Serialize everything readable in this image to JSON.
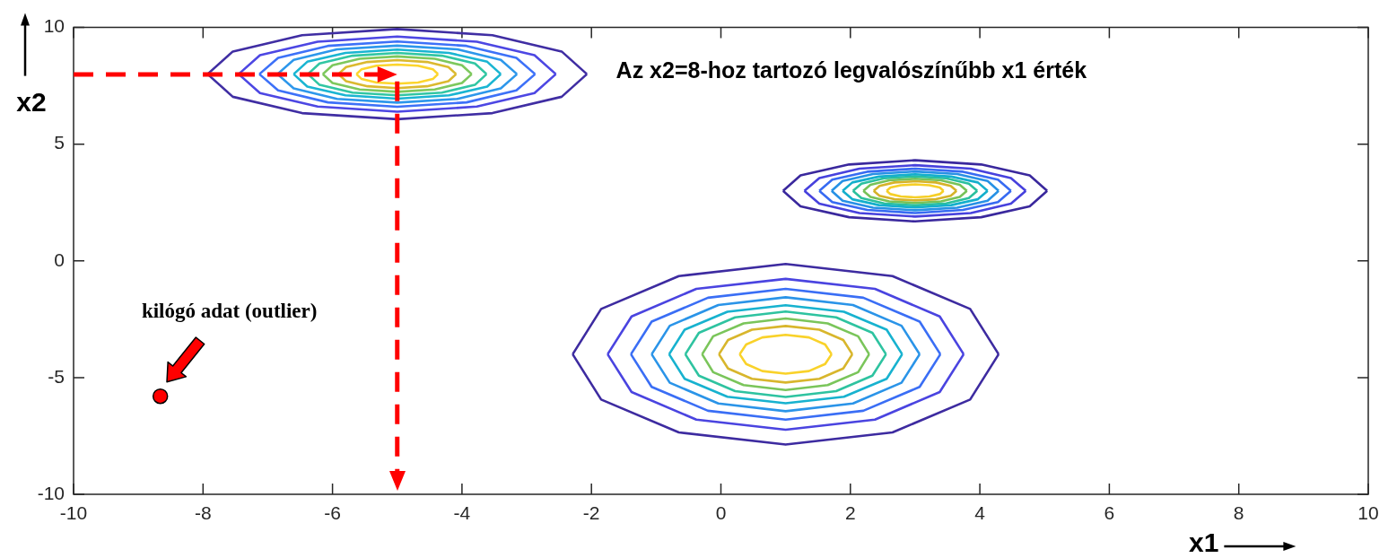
{
  "chart_data": {
    "type": "line",
    "xlabel": "x1",
    "ylabel": "x2",
    "xlim": [
      -10,
      10
    ],
    "ylim": [
      -10,
      10
    ],
    "xticks": [
      -10,
      -8,
      -6,
      -4,
      -2,
      0,
      2,
      4,
      6,
      8,
      10
    ],
    "yticks": [
      -10,
      -5,
      0,
      5,
      10
    ],
    "marker": "none",
    "ref_lines": [
      {
        "axis": "x",
        "value": -5,
        "color": "#ff0000",
        "line_style": "dashed"
      }
    ],
    "annotations": [
      "Az x2=8-hoz tartozó legvalószínűbb x1 érték",
      "kilógó adat (outlier)"
    ],
    "series": [
      {
        "color": "#3d2ba0",
        "x": [
          -2.29,
          -1.85,
          -0.65,
          1,
          2.65,
          3.85,
          4.29
        ],
        "values": [
          -4,
          -2.06,
          -0.65,
          -0.13,
          -0.65,
          -2.06,
          -4
        ]
      },
      {
        "color": "#3d2ba0",
        "x": [
          -2.29,
          -1.85,
          -0.65,
          1,
          2.65,
          3.85,
          4.29
        ],
        "values": [
          -4,
          -5.94,
          -7.35,
          -7.87,
          -7.35,
          -5.94,
          -4
        ]
      },
      {
        "color": "#4a44e0",
        "x": [
          -1.75,
          -1.38,
          -0.38,
          1,
          2.38,
          3.38,
          3.75
        ],
        "values": [
          -4,
          -2.38,
          -1.2,
          -0.77,
          -1.2,
          -2.38,
          -4
        ]
      },
      {
        "color": "#4a44e0",
        "x": [
          -1.75,
          -1.38,
          -0.38,
          1,
          2.38,
          3.38,
          3.75
        ],
        "values": [
          -4,
          -5.62,
          -6.8,
          -7.23,
          -6.8,
          -5.62,
          -4
        ]
      },
      {
        "color": "#3a6ef5",
        "x": [
          -1.39,
          -1.07,
          -0.2,
          1,
          2.2,
          3.07,
          3.39
        ],
        "values": [
          -4,
          -2.6,
          -1.58,
          -1.2,
          -1.58,
          -2.6,
          -4
        ]
      },
      {
        "color": "#3a6ef5",
        "x": [
          -1.39,
          -1.07,
          -0.2,
          1,
          2.2,
          3.07,
          3.39
        ],
        "values": [
          -4,
          -5.4,
          -6.42,
          -6.8,
          -6.42,
          -5.4,
          -4
        ]
      },
      {
        "color": "#2a94e8",
        "x": [
          -1.07,
          -0.79,
          -0.04,
          1,
          2.04,
          2.79,
          3.07
        ],
        "values": [
          -4,
          -2.78,
          -1.89,
          -1.56,
          -1.89,
          -2.78,
          -4
        ]
      },
      {
        "color": "#2a94e8",
        "x": [
          -1.07,
          -0.79,
          -0.04,
          1,
          2.04,
          2.79,
          3.07
        ],
        "values": [
          -4,
          -5.22,
          -6.11,
          -6.44,
          -6.11,
          -5.22,
          -4
        ]
      },
      {
        "color": "#17b2cf",
        "x": [
          -0.8,
          -0.56,
          0.1,
          1,
          1.9,
          2.56,
          2.8
        ],
        "values": [
          -4,
          -2.95,
          -2.18,
          -1.9,
          -2.18,
          -2.95,
          -4
        ]
      },
      {
        "color": "#17b2cf",
        "x": [
          -0.8,
          -0.56,
          0.1,
          1,
          1.9,
          2.56,
          2.8
        ],
        "values": [
          -4,
          -5.05,
          -5.82,
          -6.1,
          -5.82,
          -5.05,
          -4
        ]
      },
      {
        "color": "#2ec3a0",
        "x": [
          -0.55,
          -0.34,
          0.22,
          1,
          1.78,
          2.34,
          2.55
        ],
        "values": [
          -4,
          -3.08,
          -2.42,
          -2.17,
          -2.42,
          -3.08,
          -4
        ]
      },
      {
        "color": "#2ec3a0",
        "x": [
          -0.55,
          -0.34,
          0.22,
          1,
          1.78,
          2.34,
          2.55
        ],
        "values": [
          -4,
          -4.92,
          -5.58,
          -5.83,
          -5.58,
          -4.92,
          -4
        ]
      },
      {
        "color": "#7ac55a",
        "x": [
          -0.29,
          -0.12,
          0.35,
          1,
          1.65,
          2.12,
          2.29
        ],
        "values": [
          -4,
          -3.23,
          -2.68,
          -2.47,
          -2.68,
          -3.23,
          -4
        ]
      },
      {
        "color": "#7ac55a",
        "x": [
          -0.29,
          -0.12,
          0.35,
          1,
          1.65,
          2.12,
          2.29
        ],
        "values": [
          -4,
          -4.77,
          -5.32,
          -5.53,
          -5.32,
          -4.77,
          -4
        ]
      },
      {
        "color": "#d8b62c",
        "x": [
          -0.03,
          0.11,
          0.48,
          1,
          1.52,
          1.89,
          2.03
        ],
        "values": [
          -4,
          -3.39,
          -2.95,
          -2.79,
          -2.95,
          -3.39,
          -4
        ]
      },
      {
        "color": "#d8b62c",
        "x": [
          -0.03,
          0.11,
          0.48,
          1,
          1.52,
          1.89,
          2.03
        ],
        "values": [
          -4,
          -4.61,
          -5.05,
          -5.21,
          -5.05,
          -4.61,
          -4
        ]
      },
      {
        "color": "#f9d22a",
        "x": [
          0.29,
          0.39,
          0.64,
          1,
          1.36,
          1.61,
          1.71
        ],
        "values": [
          -4,
          -3.58,
          -3.28,
          -3.17,
          -3.28,
          -3.58,
          -4
        ]
      },
      {
        "color": "#f9d22a",
        "x": [
          0.29,
          0.39,
          0.64,
          1,
          1.36,
          1.61,
          1.71
        ],
        "values": [
          -4,
          -4.42,
          -4.72,
          -4.83,
          -4.72,
          -4.42,
          -4
        ]
      },
      {
        "color": "#402ea3",
        "x": [
          -7.93,
          -7.54,
          -6.47,
          -5,
          -3.53,
          -2.46,
          -2.07
        ],
        "values": [
          8,
          8.97,
          9.67,
          9.93,
          9.67,
          8.97,
          8
        ]
      },
      {
        "color": "#402ea3",
        "x": [
          -7.93,
          -7.54,
          -6.47,
          -5,
          -3.53,
          -2.46,
          -2.07
        ],
        "values": [
          8,
          7.03,
          6.33,
          6.07,
          6.33,
          7.03,
          8
        ]
      },
      {
        "color": "#4d47e3",
        "x": [
          -7.45,
          -7.12,
          -6.23,
          -5,
          -3.77,
          -2.88,
          -2.55
        ],
        "values": [
          8,
          8.81,
          9.39,
          9.61,
          9.39,
          8.81,
          8
        ]
      },
      {
        "color": "#4d47e3",
        "x": [
          -7.45,
          -7.12,
          -6.23,
          -5,
          -3.77,
          -2.88,
          -2.55
        ],
        "values": [
          8,
          7.19,
          6.61,
          6.39,
          6.61,
          7.19,
          8
        ]
      },
      {
        "color": "#3d71f8",
        "x": [
          -7.13,
          -6.84,
          -6.07,
          -5,
          -3.93,
          -3.16,
          -2.87
        ],
        "values": [
          8,
          8.7,
          9.21,
          9.4,
          9.21,
          8.7,
          8
        ]
      },
      {
        "color": "#3d71f8",
        "x": [
          -7.13,
          -6.84,
          -6.07,
          -5,
          -3.93,
          -3.16,
          -2.87
        ],
        "values": [
          8,
          7.3,
          6.79,
          6.6,
          6.79,
          7.3,
          8
        ]
      },
      {
        "color": "#2d97eb",
        "x": [
          -6.85,
          -6.6,
          -5.93,
          -5,
          -4.07,
          -3.4,
          -3.15
        ],
        "values": [
          8,
          8.61,
          9.06,
          9.22,
          9.06,
          8.61,
          8
        ]
      },
      {
        "color": "#2d97eb",
        "x": [
          -6.85,
          -6.6,
          -5.93,
          -5,
          -4.07,
          -3.4,
          -3.15
        ],
        "values": [
          8,
          7.39,
          6.94,
          6.78,
          6.94,
          7.39,
          8
        ]
      },
      {
        "color": "#1ab5d2",
        "x": [
          -6.6,
          -6.39,
          -5.8,
          -5,
          -4.2,
          -3.61,
          -3.4
        ],
        "values": [
          8,
          8.53,
          8.91,
          9.05,
          8.91,
          8.53,
          8
        ]
      },
      {
        "color": "#1ab5d2",
        "x": [
          -6.6,
          -6.39,
          -5.8,
          -5,
          -4.2,
          -3.61,
          -3.4
        ],
        "values": [
          8,
          7.47,
          7.09,
          6.95,
          7.09,
          7.47,
          8
        ]
      },
      {
        "color": "#31c6a3",
        "x": [
          -6.38,
          -6.2,
          -5.69,
          -5,
          -4.31,
          -3.8,
          -3.62
        ],
        "values": [
          8,
          8.46,
          8.79,
          8.91,
          8.79,
          8.46,
          8
        ]
      },
      {
        "color": "#31c6a3",
        "x": [
          -6.38,
          -6.2,
          -5.69,
          -5,
          -4.31,
          -3.8,
          -3.62
        ],
        "values": [
          8,
          7.54,
          7.21,
          7.09,
          7.21,
          7.54,
          8
        ]
      },
      {
        "color": "#7dc85d",
        "x": [
          -6.15,
          -6,
          -5.58,
          -5,
          -4.42,
          -4,
          -3.85
        ],
        "values": [
          8,
          8.38,
          8.66,
          8.76,
          8.66,
          8.38,
          8
        ]
      },
      {
        "color": "#7dc85d",
        "x": [
          -6.15,
          -6,
          -5.58,
          -5,
          -4.42,
          -4,
          -3.85
        ],
        "values": [
          8,
          7.62,
          7.34,
          7.24,
          7.34,
          7.62,
          8
        ]
      },
      {
        "color": "#dbb92f",
        "x": [
          -5.91,
          -5.79,
          -5.46,
          -5,
          -4.54,
          -4.21,
          -4.09
        ],
        "values": [
          8,
          8.3,
          8.52,
          8.6,
          8.52,
          8.3,
          8
        ]
      },
      {
        "color": "#dbb92f",
        "x": [
          -5.91,
          -5.79,
          -5.46,
          -5,
          -4.54,
          -4.21,
          -4.09
        ],
        "values": [
          8,
          7.7,
          7.48,
          7.4,
          7.48,
          7.7,
          8
        ]
      },
      {
        "color": "#fcd52d",
        "x": [
          -5.63,
          -5.55,
          -5.32,
          -5,
          -4.68,
          -4.45,
          -4.37
        ],
        "values": [
          8,
          8.21,
          8.36,
          8.41,
          8.36,
          8.21,
          8
        ]
      },
      {
        "color": "#fcd52d",
        "x": [
          -5.63,
          -5.55,
          -5.32,
          -5,
          -4.68,
          -4.45,
          -4.37
        ],
        "values": [
          8,
          7.79,
          7.64,
          7.59,
          7.64,
          7.79,
          8
        ]
      },
      {
        "color": "#3a289d",
        "x": [
          0.96,
          1.23,
          1.98,
          3,
          4.02,
          4.77,
          5.04
        ],
        "values": [
          3,
          3.66,
          4.13,
          4.31,
          4.13,
          3.66,
          3
        ]
      },
      {
        "color": "#3a289d",
        "x": [
          0.96,
          1.23,
          1.98,
          3,
          4.02,
          4.77,
          5.04
        ],
        "values": [
          3,
          2.34,
          1.87,
          1.69,
          1.87,
          2.34,
          3
        ]
      },
      {
        "color": "#4741dd",
        "x": [
          1.29,
          1.52,
          2.14,
          3,
          3.86,
          4.48,
          4.71
        ],
        "values": [
          3,
          3.55,
          3.95,
          4.1,
          3.95,
          3.55,
          3
        ]
      },
      {
        "color": "#4741dd",
        "x": [
          1.29,
          1.52,
          2.14,
          3,
          3.86,
          4.48,
          4.71
        ],
        "values": [
          3,
          2.45,
          2.05,
          1.9,
          2.05,
          2.45,
          3
        ]
      },
      {
        "color": "#376bf2",
        "x": [
          1.52,
          1.72,
          2.26,
          3,
          3.74,
          4.28,
          4.48
        ],
        "values": [
          3,
          3.48,
          3.82,
          3.95,
          3.82,
          3.48,
          3
        ]
      },
      {
        "color": "#376bf2",
        "x": [
          1.52,
          1.72,
          2.26,
          3,
          3.74,
          4.28,
          4.48
        ],
        "values": [
          3,
          2.52,
          2.18,
          2.05,
          2.18,
          2.52,
          3
        ]
      },
      {
        "color": "#2791e5",
        "x": [
          1.71,
          1.88,
          2.35,
          3,
          3.65,
          4.12,
          4.29
        ],
        "values": [
          3,
          3.42,
          3.72,
          3.83,
          3.72,
          3.42,
          3
        ]
      },
      {
        "color": "#2791e5",
        "x": [
          1.71,
          1.88,
          2.35,
          3,
          3.65,
          4.12,
          4.29
        ],
        "values": [
          3,
          2.58,
          2.28,
          2.17,
          2.28,
          2.58,
          3
        ]
      },
      {
        "color": "#14afcc",
        "x": [
          1.88,
          2.03,
          2.44,
          3,
          3.56,
          3.97,
          4.12
        ],
        "values": [
          3,
          3.36,
          3.61,
          3.71,
          3.61,
          3.36,
          3
        ]
      },
      {
        "color": "#14afcc",
        "x": [
          1.88,
          2.03,
          2.44,
          3,
          3.56,
          3.97,
          4.12
        ],
        "values": [
          3,
          2.64,
          2.39,
          2.29,
          2.39,
          2.64,
          3
        ]
      },
      {
        "color": "#2bc09d",
        "x": [
          2.04,
          2.17,
          2.52,
          3,
          3.48,
          3.83,
          3.96
        ],
        "values": [
          3,
          3.31,
          3.54,
          3.62,
          3.54,
          3.31,
          3
        ]
      },
      {
        "color": "#2bc09d",
        "x": [
          2.04,
          2.17,
          2.52,
          3,
          3.48,
          3.83,
          3.96
        ],
        "values": [
          3,
          2.69,
          2.46,
          2.38,
          2.46,
          2.69,
          3
        ]
      },
      {
        "color": "#77c257",
        "x": [
          2.2,
          2.31,
          2.6,
          3,
          3.4,
          3.69,
          3.8
        ],
        "values": [
          3,
          3.26,
          3.45,
          3.52,
          3.45,
          3.26,
          3
        ]
      },
      {
        "color": "#77c257",
        "x": [
          2.2,
          2.31,
          2.6,
          3,
          3.4,
          3.69,
          3.8
        ],
        "values": [
          3,
          2.74,
          2.55,
          2.48,
          2.55,
          2.74,
          3
        ]
      },
      {
        "color": "#d5b329",
        "x": [
          2.36,
          2.45,
          2.68,
          3,
          3.32,
          3.55,
          3.64
        ],
        "values": [
          3,
          3.21,
          3.36,
          3.41,
          3.36,
          3.21,
          3
        ]
      },
      {
        "color": "#d5b329",
        "x": [
          2.36,
          2.45,
          2.68,
          3,
          3.32,
          3.55,
          3.64
        ],
        "values": [
          3,
          2.79,
          2.64,
          2.59,
          2.64,
          2.79,
          3
        ]
      },
      {
        "color": "#f6cf27",
        "x": [
          2.56,
          2.62,
          2.78,
          3,
          3.22,
          3.38,
          3.44
        ],
        "values": [
          3,
          3.14,
          3.24,
          3.28,
          3.24,
          3.14,
          3
        ]
      },
      {
        "color": "#f6cf27",
        "x": [
          2.56,
          2.62,
          2.78,
          3,
          3.22,
          3.38,
          3.44
        ],
        "values": [
          3,
          2.86,
          2.76,
          2.72,
          2.76,
          2.86,
          3
        ]
      },
      {
        "type": "scatter",
        "marker": "circle",
        "color": "#ff0000",
        "x": [
          -8.66
        ],
        "values": [
          -5.8
        ]
      }
    ]
  }
}
